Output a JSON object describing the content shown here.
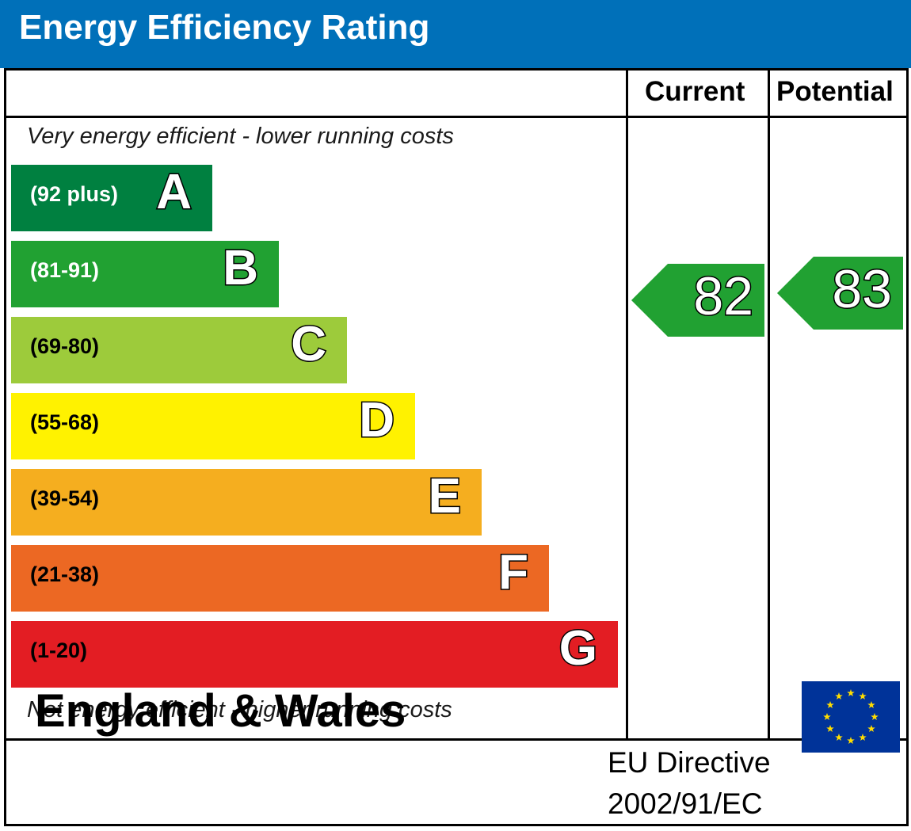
{
  "header": {
    "title": "Energy Efficiency Rating"
  },
  "columns": {
    "current": "Current",
    "potential": "Potential"
  },
  "captions": {
    "top": "Very energy efficient - lower running costs",
    "bottom": "Not energy efficient - higher running costs"
  },
  "chart_data": {
    "type": "bar",
    "title": "Energy Efficiency Rating",
    "categories": [
      "A",
      "B",
      "C",
      "D",
      "E",
      "F",
      "G"
    ],
    "bands": [
      {
        "letter": "A",
        "range": "(92 plus)",
        "min": 92,
        "max": 100,
        "color": "#008040"
      },
      {
        "letter": "B",
        "range": "(81-91)",
        "min": 81,
        "max": 91,
        "color": "#21a132"
      },
      {
        "letter": "C",
        "range": "(69-80)",
        "min": 69,
        "max": 80,
        "color": "#9dcb3b"
      },
      {
        "letter": "D",
        "range": "(55-68)",
        "min": 55,
        "max": 68,
        "color": "#fff200"
      },
      {
        "letter": "E",
        "range": "(39-54)",
        "min": 39,
        "max": 54,
        "color": "#f5ae1f"
      },
      {
        "letter": "F",
        "range": "(21-38)",
        "min": 21,
        "max": 38,
        "color": "#ec6823"
      },
      {
        "letter": "G",
        "range": "(1-20)",
        "min": 1,
        "max": 20,
        "color": "#e31d23"
      }
    ],
    "current": {
      "label": "Current",
      "value": "82",
      "band": "B",
      "color": "#21a132"
    },
    "potential": {
      "label": "Potential",
      "value": "83",
      "band": "B",
      "color": "#21a132"
    }
  },
  "footer": {
    "region": "England & Wales",
    "directive_line1": "EU Directive",
    "directive_line2": "2002/91/EC",
    "flag_icon": "eu-flag-icon",
    "flag_color": "#003399",
    "star_color": "#ffdd00"
  }
}
